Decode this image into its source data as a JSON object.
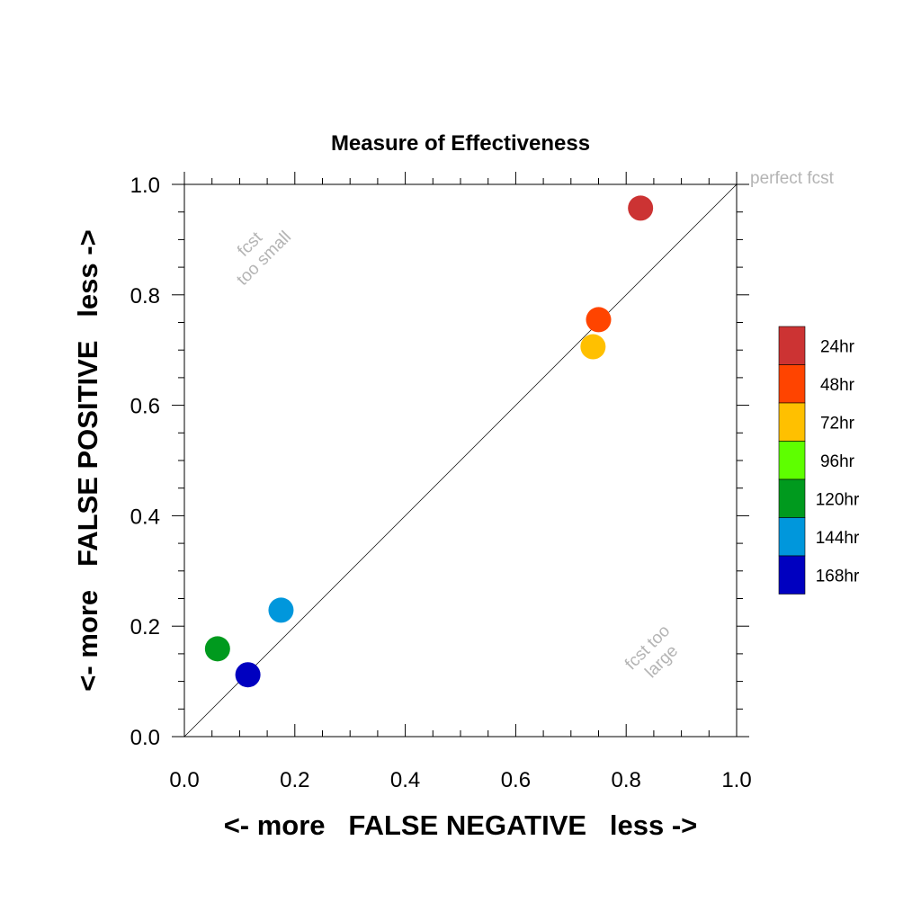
{
  "chart_data": {
    "type": "scatter",
    "title": "Measure of Effectiveness",
    "xlabel": "<- more   FALSE NEGATIVE   less ->",
    "ylabel": "<- more   FALSE POSITIVE   less ->",
    "xlim": [
      0,
      1
    ],
    "ylim": [
      0,
      1
    ],
    "xticks": [
      "0.0",
      "0.2",
      "0.4",
      "0.6",
      "0.8",
      "1.0"
    ],
    "yticks": [
      "0.0",
      "0.2",
      "0.4",
      "0.6",
      "0.8",
      "1.0"
    ],
    "grid": false,
    "legend_position": "right",
    "reference_line": {
      "from": [
        0,
        0
      ],
      "to": [
        1,
        1
      ],
      "label": "perfect fcst"
    },
    "annotations": [
      {
        "text_lines": [
          "fcst",
          "too small"
        ],
        "x": 0.13,
        "y": 0.88
      },
      {
        "text_lines": [
          "fcst too",
          "large"
        ],
        "x": 0.85,
        "y": 0.15
      }
    ],
    "series": [
      {
        "name": "168hr",
        "color": "#0000c0",
        "x": 0.115,
        "y": 0.112
      },
      {
        "name": "144hr",
        "color": "#0097dc",
        "x": 0.175,
        "y": 0.229
      },
      {
        "name": "120hr",
        "color": "#009a1e",
        "x": 0.06,
        "y": 0.159
      },
      {
        "name": "96hr",
        "color": "#5eff00"
      },
      {
        "name": "72hr",
        "color": "#ffc000",
        "x": 0.74,
        "y": 0.706
      },
      {
        "name": "48hr",
        "color": "#ff4400",
        "x": 0.75,
        "y": 0.755
      },
      {
        "name": "24hr",
        "color": "#cc3333",
        "x": 0.826,
        "y": 0.957
      }
    ]
  }
}
